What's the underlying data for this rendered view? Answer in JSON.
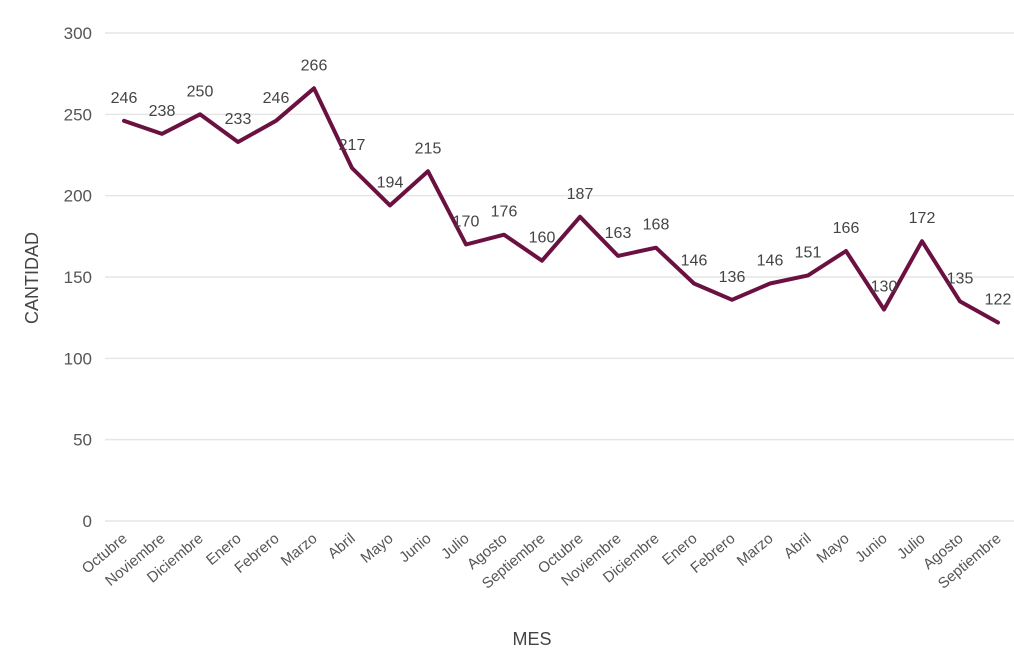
{
  "chart_data": {
    "type": "line",
    "title": "",
    "xlabel": "MES",
    "ylabel": "CANTIDAD",
    "ylim": [
      0,
      300
    ],
    "yticks": [
      0,
      50,
      100,
      150,
      200,
      250,
      300
    ],
    "grid": true,
    "legend": "none",
    "color": "#6b1142",
    "categories": [
      "Octubre",
      "Noviembre",
      "Diciembre",
      "Enero",
      "Febrero",
      "Marzo",
      "Abril",
      "Mayo",
      "Junio",
      "Julio",
      "Agosto",
      "Septiembre",
      "Octubre",
      "Noviembre",
      "Diciembre",
      "Enero",
      "Febrero",
      "Marzo",
      "Abril",
      "Mayo",
      "Junio",
      "Julio",
      "Agosto",
      "Septiembre"
    ],
    "values": [
      246,
      238,
      250,
      233,
      246,
      266,
      217,
      194,
      215,
      170,
      176,
      160,
      187,
      163,
      168,
      146,
      136,
      146,
      151,
      166,
      130,
      172,
      135,
      122
    ]
  }
}
